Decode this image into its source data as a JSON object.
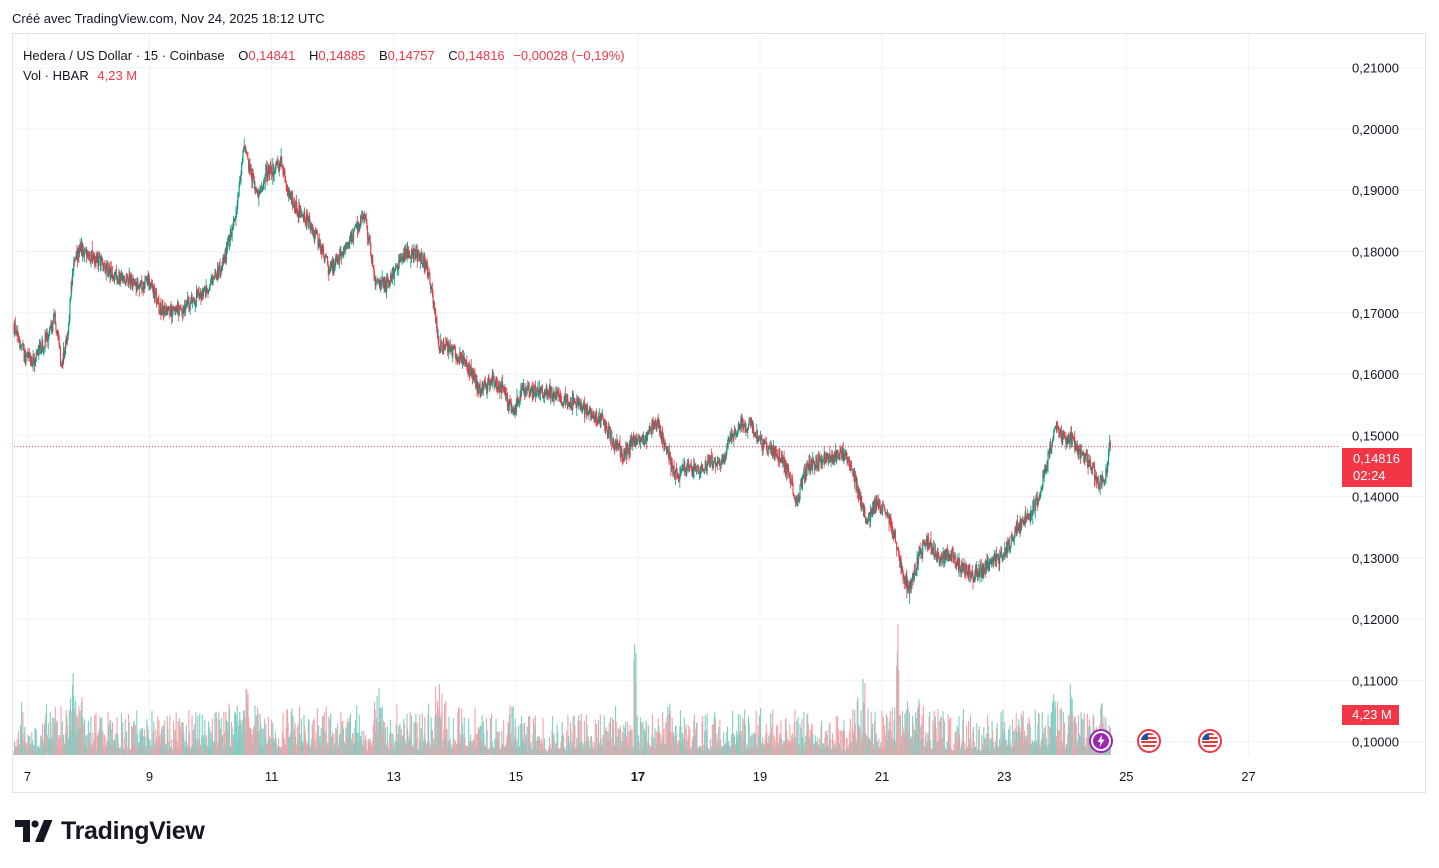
{
  "header": {
    "created": "Créé avec TradingView.com, Nov 24, 2025 18:12 UTC"
  },
  "legend": {
    "symbol": "Hedera / US Dollar · 15 · Coinbase",
    "o_label": "O",
    "o_value": "0,14841",
    "h_label": "H",
    "h_value": "0,14885",
    "b_label": "B",
    "b_value": "0,14757",
    "c_label": "C",
    "c_value": "0,14816",
    "change": "−0,00028 (−0,19%)",
    "vol_label": "Vol · HBAR",
    "vol_value": "4,23 M"
  },
  "price_tag": {
    "price": "0,14816",
    "countdown": "02:24"
  },
  "volume_tag": {
    "value": "4,23 M"
  },
  "colors": {
    "up": "#089981",
    "down": "#f23645",
    "up_vol": "#7fcfc3",
    "down_vol": "#f7a1a8"
  },
  "icons": {
    "events": [
      "lightning-event-icon",
      "us-flag-event-icon",
      "us-flag-event-icon"
    ]
  },
  "logo": {
    "text": "TradingView"
  },
  "chart_data": {
    "type": "candlestick",
    "title": "Hedera / US Dollar · 15 · Coinbase",
    "timeframe": "15",
    "x_ticks": [
      "7",
      "9",
      "11",
      "13",
      "15",
      "17",
      "19",
      "21",
      "23",
      "25",
      "27"
    ],
    "x_tick_days": [
      7,
      9,
      11,
      13,
      15,
      17,
      19,
      21,
      23,
      25,
      27
    ],
    "x_range_days": [
      6.78,
      28.5
    ],
    "y_ticks": [
      "0,21000",
      "0,20000",
      "0,19000",
      "0,18000",
      "0,17000",
      "0,16000",
      "0,15000",
      "0,14000",
      "0,13000",
      "0,12000",
      "0,11000",
      "0,10000"
    ],
    "y_tick_values": [
      0.21,
      0.2,
      0.19,
      0.18,
      0.17,
      0.16,
      0.15,
      0.14,
      0.13,
      0.12,
      0.11,
      0.1
    ],
    "y_range": [
      0.0975,
      0.2155
    ],
    "last_price": 0.14816,
    "price_path": [
      [
        6.78,
        0.168
      ],
      [
        6.95,
        0.163
      ],
      [
        7.1,
        0.162
      ],
      [
        7.3,
        0.1655
      ],
      [
        7.45,
        0.169
      ],
      [
        7.5,
        0.166
      ],
      [
        7.55,
        0.161
      ],
      [
        7.65,
        0.166
      ],
      [
        7.75,
        0.178
      ],
      [
        7.85,
        0.18
      ],
      [
        8.0,
        0.1795
      ],
      [
        8.2,
        0.1785
      ],
      [
        8.4,
        0.176
      ],
      [
        8.6,
        0.1755
      ],
      [
        8.8,
        0.1745
      ],
      [
        9.0,
        0.175
      ],
      [
        9.1,
        0.1725
      ],
      [
        9.2,
        0.17
      ],
      [
        9.5,
        0.1705
      ],
      [
        9.8,
        0.1725
      ],
      [
        10.0,
        0.1745
      ],
      [
        10.2,
        0.178
      ],
      [
        10.4,
        0.185
      ],
      [
        10.5,
        0.1935
      ],
      [
        10.55,
        0.197
      ],
      [
        10.65,
        0.193
      ],
      [
        10.8,
        0.189
      ],
      [
        10.9,
        0.193
      ],
      [
        11.05,
        0.1935
      ],
      [
        11.15,
        0.195
      ],
      [
        11.25,
        0.19
      ],
      [
        11.4,
        0.187
      ],
      [
        11.6,
        0.185
      ],
      [
        11.8,
        0.181
      ],
      [
        11.95,
        0.177
      ],
      [
        12.1,
        0.179
      ],
      [
        12.3,
        0.182
      ],
      [
        12.5,
        0.186
      ],
      [
        12.6,
        0.182
      ],
      [
        12.7,
        0.175
      ],
      [
        12.9,
        0.1745
      ],
      [
        13.05,
        0.1775
      ],
      [
        13.2,
        0.18
      ],
      [
        13.4,
        0.1795
      ],
      [
        13.55,
        0.1775
      ],
      [
        13.65,
        0.172
      ],
      [
        13.75,
        0.164
      ],
      [
        13.85,
        0.165
      ],
      [
        14.0,
        0.1635
      ],
      [
        14.2,
        0.1615
      ],
      [
        14.4,
        0.1575
      ],
      [
        14.65,
        0.159
      ],
      [
        14.8,
        0.1575
      ],
      [
        14.95,
        0.1535
      ],
      [
        15.1,
        0.1575
      ],
      [
        15.3,
        0.157
      ],
      [
        15.55,
        0.157
      ],
      [
        15.8,
        0.1555
      ],
      [
        16.0,
        0.1555
      ],
      [
        16.2,
        0.154
      ],
      [
        16.45,
        0.152
      ],
      [
        16.6,
        0.149
      ],
      [
        16.75,
        0.1465
      ],
      [
        16.9,
        0.1485
      ],
      [
        17.1,
        0.1495
      ],
      [
        17.3,
        0.152
      ],
      [
        17.45,
        0.1485
      ],
      [
        17.6,
        0.1435
      ],
      [
        17.8,
        0.1445
      ],
      [
        18.0,
        0.144
      ],
      [
        18.2,
        0.146
      ],
      [
        18.35,
        0.1445
      ],
      [
        18.5,
        0.1495
      ],
      [
        18.7,
        0.152
      ],
      [
        18.9,
        0.151
      ],
      [
        19.1,
        0.148
      ],
      [
        19.3,
        0.147
      ],
      [
        19.45,
        0.1445
      ],
      [
        19.6,
        0.139
      ],
      [
        19.75,
        0.1445
      ],
      [
        19.9,
        0.1455
      ],
      [
        20.1,
        0.1465
      ],
      [
        20.3,
        0.147
      ],
      [
        20.45,
        0.1465
      ],
      [
        20.6,
        0.141
      ],
      [
        20.75,
        0.1355
      ],
      [
        20.9,
        0.139
      ],
      [
        21.05,
        0.1375
      ],
      [
        21.2,
        0.134
      ],
      [
        21.35,
        0.1265
      ],
      [
        21.45,
        0.125
      ],
      [
        21.55,
        0.1285
      ],
      [
        21.7,
        0.133
      ],
      [
        21.9,
        0.13
      ],
      [
        22.1,
        0.1305
      ],
      [
        22.3,
        0.1285
      ],
      [
        22.5,
        0.127
      ],
      [
        22.7,
        0.1285
      ],
      [
        22.9,
        0.13
      ],
      [
        23.0,
        0.131
      ],
      [
        23.2,
        0.1345
      ],
      [
        23.4,
        0.137
      ],
      [
        23.55,
        0.1395
      ],
      [
        23.7,
        0.1455
      ],
      [
        23.8,
        0.15
      ],
      [
        23.85,
        0.1515
      ],
      [
        23.95,
        0.1495
      ],
      [
        24.1,
        0.1495
      ],
      [
        24.3,
        0.1465
      ],
      [
        24.45,
        0.145
      ],
      [
        24.55,
        0.142
      ],
      [
        24.65,
        0.143
      ],
      [
        24.72,
        0.1478
      ],
      [
        24.74,
        0.14816
      ]
    ],
    "price_low": {
      "x": 21.45,
      "y": 0.1225
    },
    "price_high": {
      "x": 10.55,
      "y": 0.1985
    },
    "volume_spikes_note": "",
    "volume_spikes": [
      [
        7.75,
        1.0
      ],
      [
        10.15,
        0.58
      ],
      [
        10.6,
        0.92
      ],
      [
        16.95,
        1.5
      ],
      [
        20.7,
        1.05
      ],
      [
        21.25,
        1.75
      ],
      [
        21.6,
        0.95
      ],
      [
        23.8,
        0.95
      ],
      [
        24.1,
        1.0
      ],
      [
        24.6,
        0.7
      ]
    ],
    "legend_placement": "top-left",
    "grid": true
  }
}
